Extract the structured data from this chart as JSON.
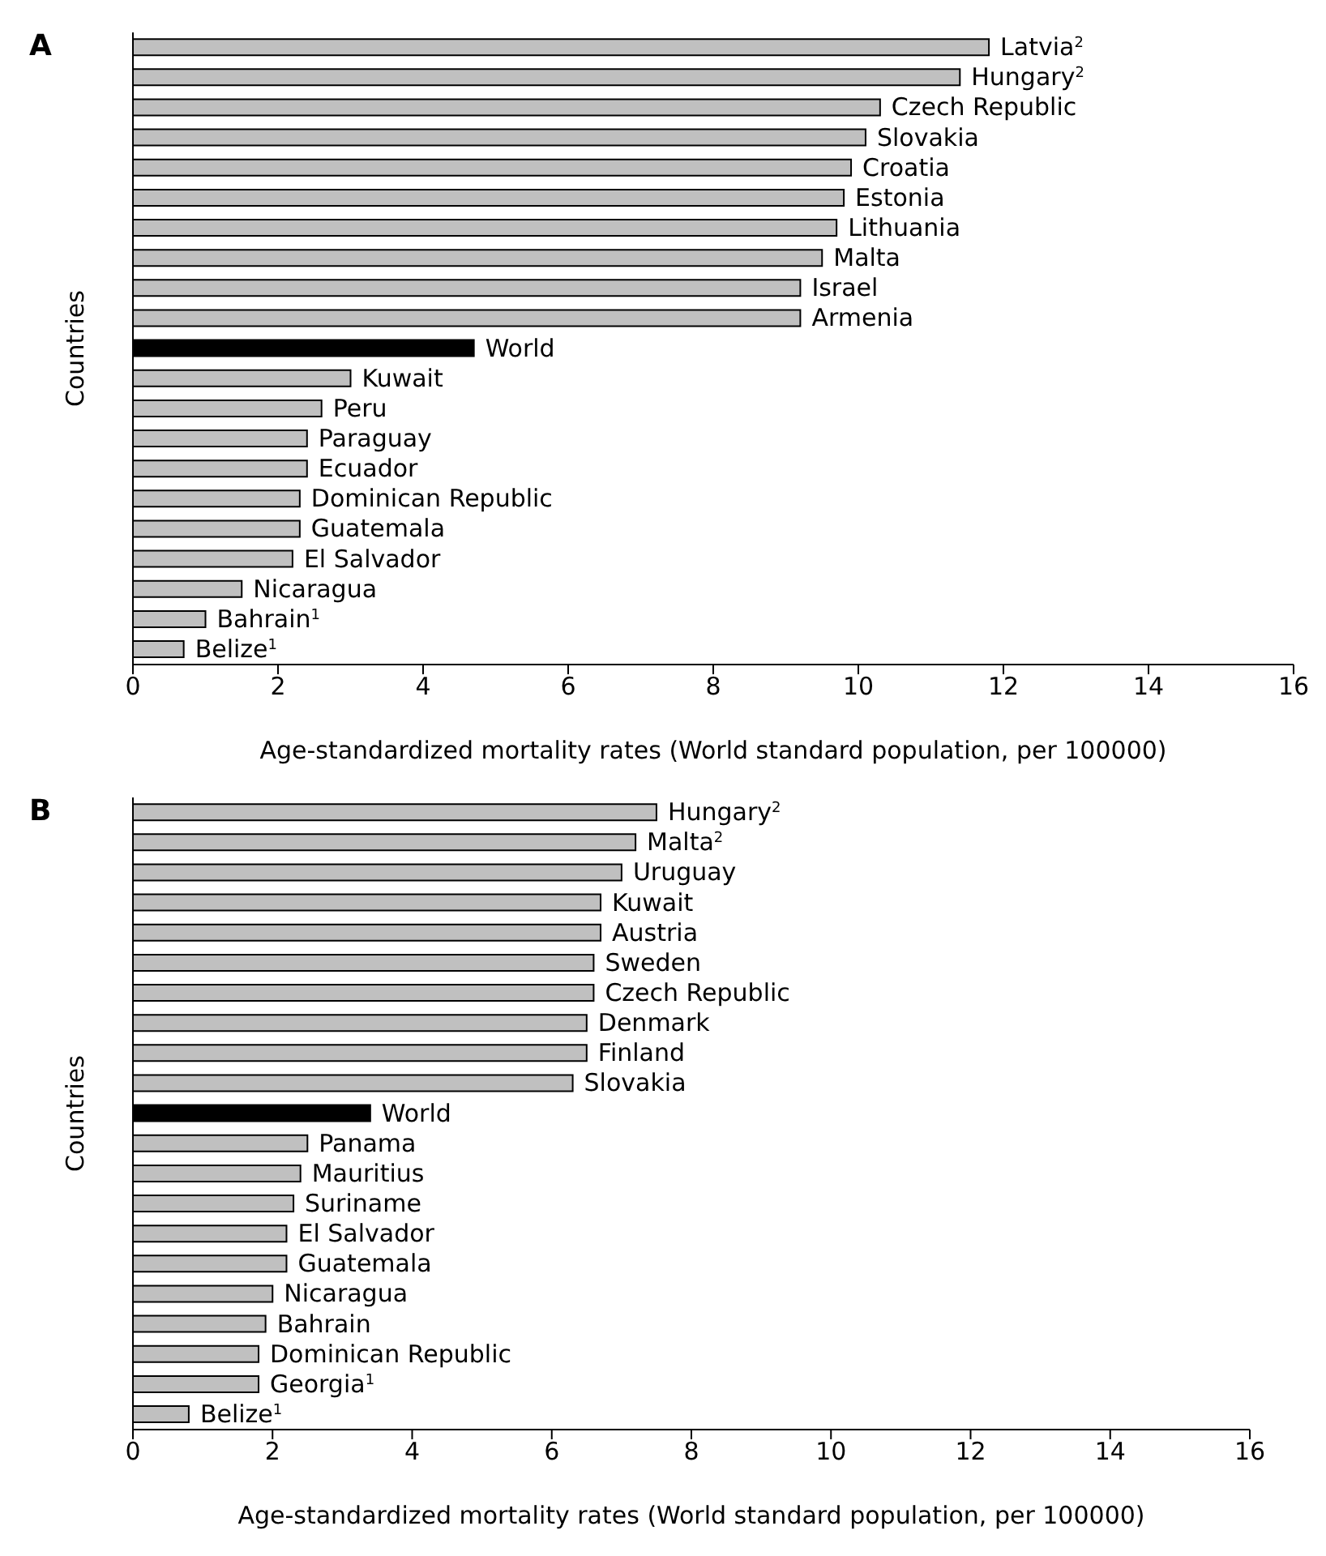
{
  "chart_data": [
    {
      "type": "bar",
      "orientation": "horizontal",
      "title": "A",
      "ylabel": "Countries",
      "xlabel": "Age-standardized mortality rates (World standard population, per 100000)",
      "tick_labels": "x",
      "categories": [
        "Latvia$^{2}$",
        "Hungary$^{2}$",
        "Czech Republic",
        "Slovakia",
        "Croatia",
        "Estonia",
        "Lithuania",
        "Malta",
        "Israel",
        "Armenia",
        "World",
        "Kuwait",
        "Peru",
        "Paraguay",
        "Ecuador",
        "Dominican Republic",
        "Guatemala",
        "El Salvador",
        "Nicaragua",
        "Bahrain$^{1}$",
        "Belize$^{1}$"
      ],
      "values": [
        11.8,
        11.4,
        10.3,
        10.1,
        9.9,
        9.8,
        9.7,
        9.5,
        9.2,
        9.2,
        4.7,
        3.0,
        2.6,
        2.4,
        2.4,
        2.3,
        2.3,
        2.2,
        1.5,
        1.0,
        0.7
      ],
      "colors": [
        "#c0c0c0",
        "#c0c0c0",
        "#c0c0c0",
        "#c0c0c0",
        "#c0c0c0",
        "#c0c0c0",
        "#c0c0c0",
        "#c0c0c0",
        "#c0c0c0",
        "#c0c0c0",
        "#000000",
        "#c0c0c0",
        "#c0c0c0",
        "#c0c0c0",
        "#c0c0c0",
        "#c0c0c0",
        "#c0c0c0",
        "#c0c0c0",
        "#c0c0c0",
        "#c0c0c0",
        "#c0c0c0"
      ],
      "xlim": [
        0,
        16
      ],
      "xticks": [
        0,
        2,
        4,
        6,
        8,
        10,
        12,
        14,
        16
      ]
    },
    {
      "type": "bar",
      "orientation": "horizontal",
      "title": "B",
      "ylabel": "Countries",
      "xlabel": "Age-standardized mortality rates (World standard population, per 100000)",
      "tick_labels": "x",
      "categories": [
        "Hungary$^{2}$",
        "Malta$^{2}$",
        "Uruguay",
        "Kuwait",
        "Austria",
        "Sweden",
        "Czech Republic",
        "Denmark",
        "Finland",
        "Slovakia",
        "World",
        "Panama",
        "Mauritius",
        "Suriname",
        "El Salvador",
        "Guatemala",
        "Nicaragua",
        "Bahrain",
        "Dominican Republic",
        "Georgia$^{1}$",
        "Belize$^{1}$"
      ],
      "values": [
        7.5,
        7.2,
        7.0,
        6.7,
        6.7,
        6.6,
        6.6,
        6.5,
        6.5,
        6.3,
        3.4,
        2.5,
        2.4,
        2.3,
        2.2,
        2.2,
        2.0,
        1.9,
        1.8,
        1.8,
        0.8
      ],
      "colors": [
        "#c0c0c0",
        "#c0c0c0",
        "#c0c0c0",
        "#c0c0c0",
        "#c0c0c0",
        "#c0c0c0",
        "#c0c0c0",
        "#c0c0c0",
        "#c0c0c0",
        "#c0c0c0",
        "#000000",
        "#c0c0c0",
        "#c0c0c0",
        "#c0c0c0",
        "#c0c0c0",
        "#c0c0c0",
        "#c0c0c0",
        "#c0c0c0",
        "#c0c0c0",
        "#c0c0c0",
        "#c0c0c0"
      ],
      "xlim": [
        0,
        16
      ],
      "xticks": [
        0,
        2,
        4,
        6,
        8,
        10,
        12,
        14,
        16
      ]
    }
  ]
}
